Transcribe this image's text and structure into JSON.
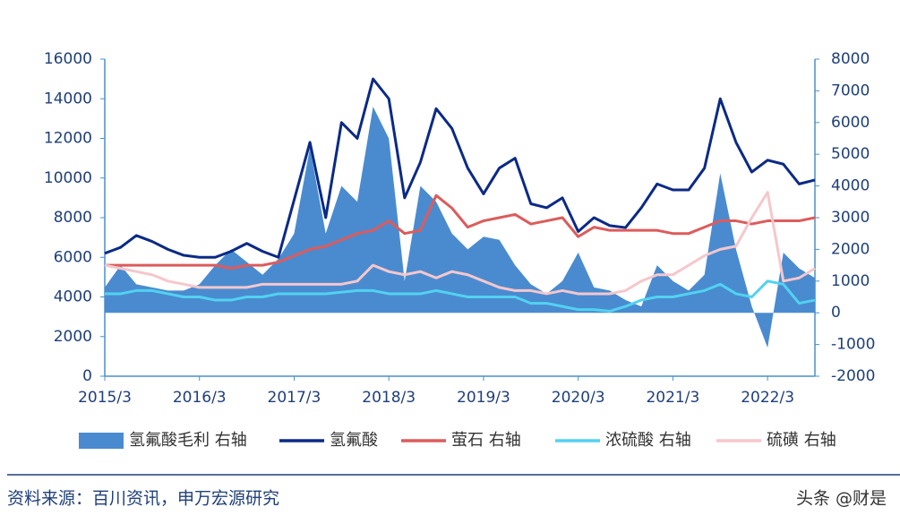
{
  "chart_data": {
    "type": "line",
    "x": [
      "2015/3",
      "2015/5",
      "2015/7",
      "2015/9",
      "2015/11",
      "2016/1",
      "2016/3",
      "2016/5",
      "2016/7",
      "2016/9",
      "2016/11",
      "2017/1",
      "2017/3",
      "2017/5",
      "2017/7",
      "2017/9",
      "2017/11",
      "2018/1",
      "2018/3",
      "2018/5",
      "2018/7",
      "2018/9",
      "2018/11",
      "2019/1",
      "2019/3",
      "2019/5",
      "2019/7",
      "2019/9",
      "2019/11",
      "2020/1",
      "2020/3",
      "2020/5",
      "2020/7",
      "2020/9",
      "2020/11",
      "2021/1",
      "2021/3",
      "2021/5",
      "2021/7",
      "2021/9",
      "2021/11",
      "2022/1",
      "2022/3",
      "2022/5",
      "2022/7",
      "2022/9"
    ],
    "xticks": [
      "2015/3",
      "2016/3",
      "2017/3",
      "2018/3",
      "2019/3",
      "2020/3",
      "2021/3",
      "2022/3"
    ],
    "ylim": [
      0,
      16000
    ],
    "yticks": [
      0,
      2000,
      4000,
      6000,
      8000,
      10000,
      12000,
      14000,
      16000
    ],
    "y2lim": [
      -2000,
      8000
    ],
    "y2ticks": [
      -2000,
      -1000,
      0,
      1000,
      2000,
      3000,
      4000,
      5000,
      6000,
      7000,
      8000
    ],
    "series": [
      {
        "name": "氢氟酸毛利 右轴",
        "type": "area",
        "axis": "y2",
        "color": "#4a8bd0",
        "values": [
          800,
          1500,
          900,
          800,
          700,
          700,
          900,
          1500,
          2000,
          1600,
          1200,
          1700,
          2500,
          5200,
          2500,
          4000,
          3500,
          6500,
          5500,
          1000,
          4000,
          3500,
          2500,
          2000,
          2400,
          2300,
          1500,
          900,
          600,
          1000,
          1900,
          800,
          700,
          400,
          200,
          1500,
          1000,
          700,
          1200,
          4400,
          2000,
          200,
          -1100,
          1900,
          1400,
          1100
        ]
      },
      {
        "name": "氢氟酸",
        "type": "line",
        "color": "#0b2a86",
        "values": [
          6200,
          6500,
          7100,
          6800,
          6400,
          6100,
          6000,
          6000,
          6300,
          6700,
          6300,
          6000,
          8900,
          11800,
          8000,
          12800,
          12000,
          15000,
          14000,
          9000,
          10800,
          13500,
          12500,
          10500,
          9200,
          10500,
          11000,
          8700,
          8500,
          9000,
          7300,
          8000,
          7600,
          7500,
          8500,
          9700,
          9400,
          9400,
          10500,
          14000,
          11800,
          10300,
          10900,
          10700,
          9700,
          9900
        ]
      },
      {
        "name": "萤石 右轴",
        "type": "line",
        "axis": "y2",
        "color": "#dd5b5b",
        "values": [
          1500,
          1500,
          1500,
          1500,
          1500,
          1500,
          1500,
          1500,
          1400,
          1500,
          1500,
          1600,
          1800,
          2000,
          2100,
          2300,
          2500,
          2600,
          2900,
          2500,
          2600,
          3700,
          3300,
          2700,
          2900,
          3000,
          3100,
          2800,
          2900,
          3000,
          2400,
          2700,
          2600,
          2600,
          2600,
          2600,
          2500,
          2500,
          2700,
          2900,
          2900,
          2800,
          2900,
          2900,
          2900,
          3000
        ]
      },
      {
        "name": "浓硫酸 右轴",
        "type": "line",
        "axis": "y2",
        "color": "#52d2f0",
        "values": [
          600,
          600,
          700,
          700,
          600,
          500,
          500,
          400,
          400,
          500,
          500,
          600,
          600,
          600,
          600,
          650,
          700,
          700,
          600,
          600,
          600,
          700,
          600,
          500,
          500,
          500,
          500,
          300,
          300,
          200,
          100,
          100,
          50,
          200,
          400,
          500,
          500,
          600,
          700,
          900,
          600,
          500,
          1000,
          900,
          300,
          400
        ]
      },
      {
        "name": "硫磺 右轴",
        "type": "line",
        "axis": "y2",
        "color": "#f5c7cc",
        "values": [
          1500,
          1400,
          1300,
          1200,
          1000,
          900,
          800,
          800,
          800,
          800,
          900,
          900,
          900,
          900,
          900,
          900,
          1000,
          1500,
          1300,
          1200,
          1300,
          1100,
          1300,
          1200,
          1000,
          800,
          700,
          700,
          600,
          700,
          600,
          600,
          600,
          700,
          1000,
          1200,
          1200,
          1500,
          1800,
          2000,
          2100,
          3000,
          3800,
          1000,
          1100,
          1400
        ]
      }
    ]
  },
  "footer": {
    "source": "资料来源：百川资讯，申万宏源研究",
    "watermark": "头条 @财是"
  }
}
